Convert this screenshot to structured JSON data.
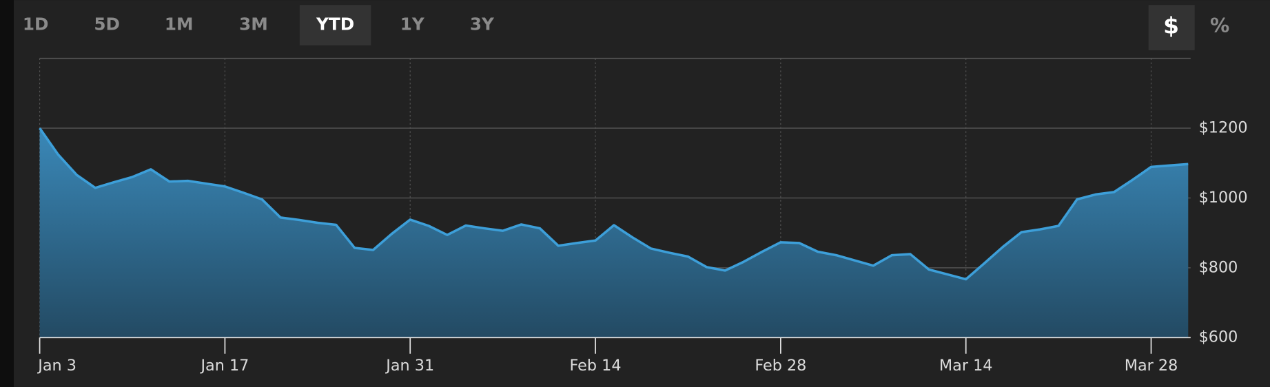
{
  "range_buttons": [
    "1D",
    "5D",
    "1M",
    "3M",
    "YTD",
    "1Y",
    "3Y"
  ],
  "unit_buttons": [
    "$",
    "%"
  ],
  "chart_data": {
    "type": "area",
    "categories": [
      "Jan 3",
      null,
      null,
      null,
      null,
      null,
      null,
      null,
      null,
      null,
      "Jan 17",
      null,
      null,
      null,
      null,
      null,
      null,
      null,
      null,
      null,
      "Jan 31",
      null,
      null,
      null,
      null,
      null,
      null,
      null,
      null,
      null,
      "Feb 14",
      null,
      null,
      null,
      null,
      null,
      null,
      null,
      null,
      null,
      "Feb 28",
      null,
      null,
      null,
      null,
      null,
      null,
      null,
      null,
      null,
      "Mar 14",
      null,
      null,
      null,
      null,
      null,
      null,
      null,
      null,
      null,
      "Mar 28",
      null,
      null
    ],
    "values": [
      1200,
      1124,
      1066,
      1029,
      1045,
      1060,
      1082,
      1047,
      1049,
      1041,
      1033,
      1015,
      996,
      944,
      937,
      929,
      923,
      857,
      851,
      897,
      938,
      920,
      894,
      921,
      913,
      906,
      924,
      913,
      863,
      871,
      878,
      922,
      887,
      855,
      843,
      832,
      802,
      792,
      817,
      846,
      873,
      871,
      846,
      836,
      821,
      806,
      836,
      839,
      795,
      781,
      767,
      813,
      860,
      902,
      910,
      920,
      996,
      1010,
      1017,
      1052,
      1089,
      1093,
      1097
    ],
    "color": "#3d9fd9",
    "ylim": [
      600,
      1400
    ],
    "yticks": [
      {
        "value": 600,
        "label": "$600"
      },
      {
        "value": 800,
        "label": "$800"
      },
      {
        "value": 1000,
        "label": "$1000"
      },
      {
        "value": 1200,
        "label": "$1200"
      }
    ],
    "grid": true
  }
}
